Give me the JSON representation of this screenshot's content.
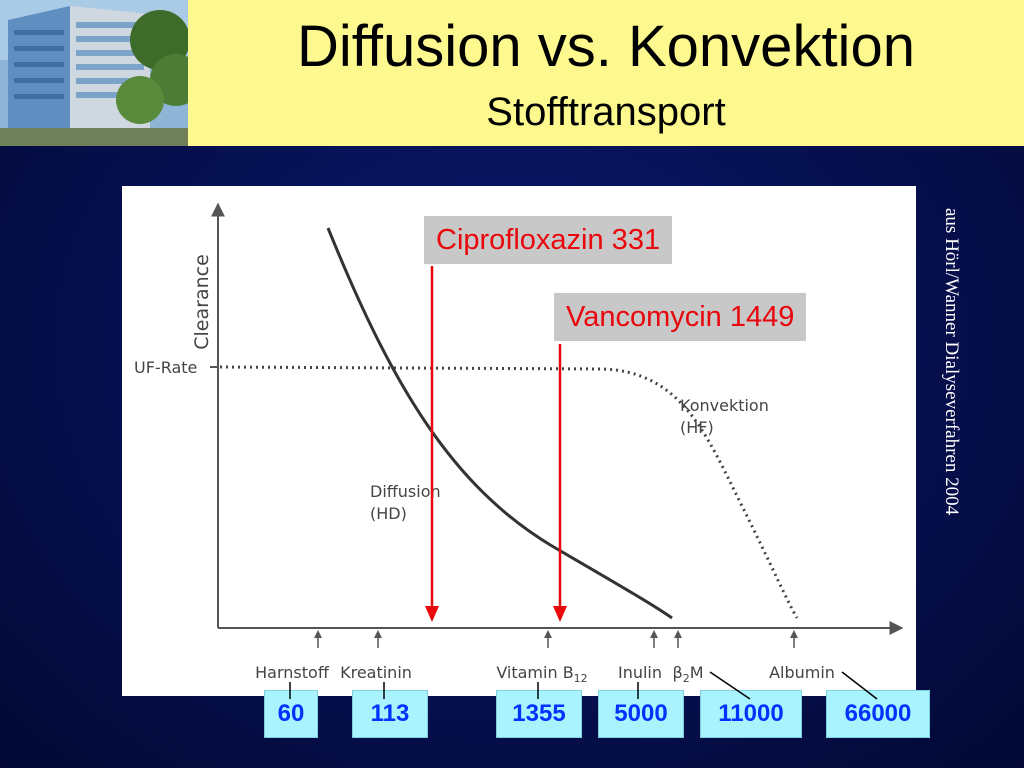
{
  "header": {
    "title": "Diffusion vs. Konvektion",
    "subtitle": "Stofftransport"
  },
  "source_note": "aus Hörl/Wanner Dialyseverfahren 2004",
  "callouts": {
    "ciprofloxazin": "Ciprofloxazin 331",
    "vancomycin": "Vancomycin 1449"
  },
  "colors": {
    "header_bg": "#fdf98f",
    "slide_bg": "#06104f",
    "callout_text": "#e8070d",
    "arrow": "#e8070d",
    "mw_box_bg": "#a9f3ff",
    "mw_box_text": "#0033ff"
  },
  "chart_data": {
    "type": "line",
    "ylabel": "Clearance",
    "y_reference_label": "UF-Rate",
    "grid": false,
    "series": [
      {
        "name": "Diffusion\n(HD)",
        "style": "solid",
        "trend": "decreasing"
      },
      {
        "name": "Konvektion\n(HF)",
        "style": "dotted",
        "trend": "flat-then-decreasing"
      }
    ],
    "markers": [
      {
        "label": "Harnstoff",
        "mw": "60"
      },
      {
        "label": "Kreatinin",
        "mw": "113"
      },
      {
        "label": "Vitamin B",
        "label_sub": "12",
        "mw": "1355"
      },
      {
        "label": "Inulin",
        "mw": "5000"
      },
      {
        "label": "β",
        "label_sub": "2",
        "label_after": "M",
        "mw": "11000"
      },
      {
        "label": "Albumin",
        "mw": "66000"
      }
    ]
  }
}
